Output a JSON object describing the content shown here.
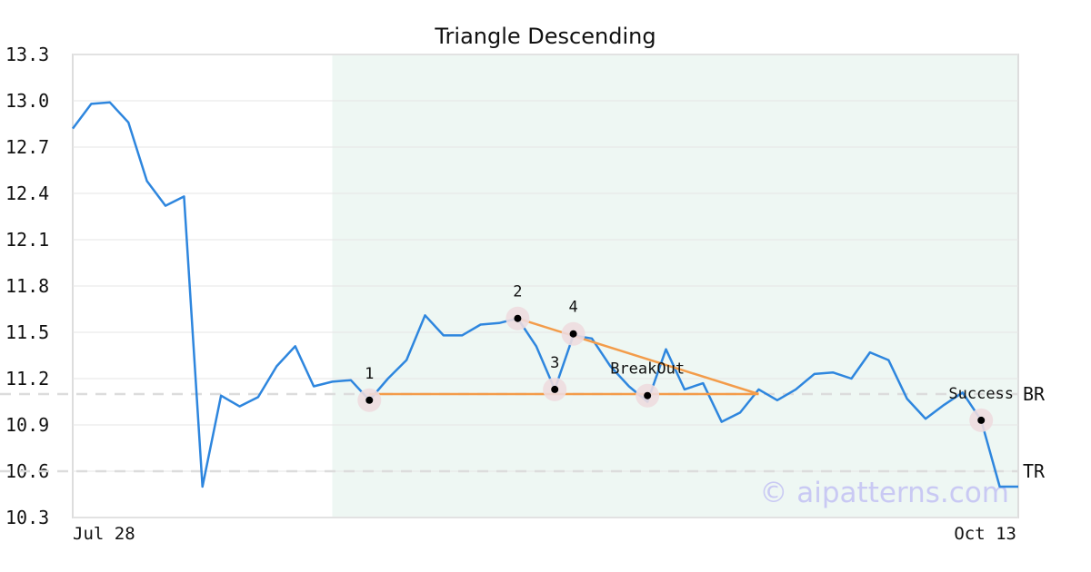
{
  "chart_data": {
    "type": "line",
    "title": "Triangle Descending",
    "ylim": [
      10.3,
      13.3
    ],
    "y_ticks": [
      "10.3",
      "10.6",
      "10.9",
      "11.2",
      "11.5",
      "11.8",
      "12.1",
      "12.4",
      "12.7",
      "13.0",
      "13.3"
    ],
    "x_tick_labels": [
      {
        "label": "Jul 28",
        "index": 0
      },
      {
        "label": "Oct 13",
        "index": 51
      }
    ],
    "grid": true,
    "series": [
      {
        "color": "#2e86de",
        "values": [
          12.82,
          12.98,
          12.99,
          12.86,
          12.48,
          12.32,
          12.38,
          10.5,
          11.09,
          11.02,
          11.08,
          11.28,
          11.41,
          11.15,
          11.18,
          11.19,
          11.06,
          11.2,
          11.32,
          11.61,
          11.48,
          11.48,
          11.55,
          11.56,
          11.59,
          11.41,
          11.13,
          11.48,
          11.46,
          11.28,
          11.15,
          11.05,
          11.39,
          11.13,
          11.17,
          10.92,
          10.98,
          11.13,
          11.06,
          11.13,
          11.23,
          11.24,
          11.2,
          11.37,
          11.32,
          11.07,
          10.94,
          11.03,
          11.11,
          10.93,
          10.5,
          10.5
        ]
      }
    ],
    "shaded_region": {
      "from_index": 14,
      "to_index": 51,
      "color": "#eef7f3"
    },
    "reference_lines": [
      {
        "label": "BR",
        "value": 11.1
      },
      {
        "label": "TR",
        "value": 10.6
      }
    ],
    "pattern_lines": [
      {
        "from": {
          "index": 16,
          "value": 11.1
        },
        "to": {
          "index": 37,
          "value": 11.1
        },
        "color": "#f39c4a"
      },
      {
        "from": {
          "index": 24,
          "value": 11.59
        },
        "to": {
          "index": 37,
          "value": 11.1
        },
        "color": "#f39c4a"
      }
    ],
    "annotations": [
      {
        "label": "1",
        "index": 16,
        "value": 11.06
      },
      {
        "label": "2",
        "index": 24,
        "value": 11.59
      },
      {
        "label": "3",
        "index": 26,
        "value": 11.13
      },
      {
        "label": "4",
        "index": 27,
        "value": 11.49
      },
      {
        "label": "BreakOut",
        "index": 31,
        "value": 11.09
      },
      {
        "label": "Success",
        "index": 49,
        "value": 10.93
      }
    ],
    "watermark": "© aipatterns.com"
  }
}
